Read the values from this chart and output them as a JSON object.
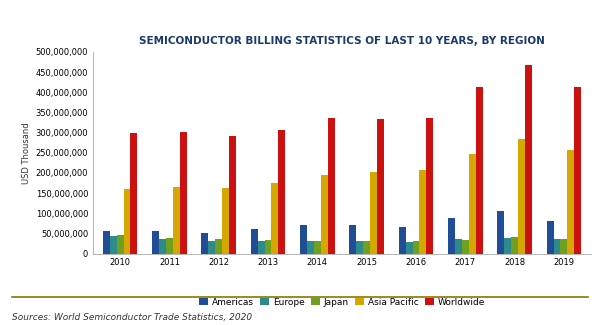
{
  "title": "SEMICONDUCTOR BILLING STATISTICS OF LAST 10 YEARS, BY REGION",
  "ylabel": "USD Thousand",
  "source": "Sources: World Semiconductor Trade Statistics, 2020",
  "years": [
    2010,
    2011,
    2012,
    2013,
    2014,
    2015,
    2016,
    2017,
    2018,
    2019
  ],
  "series": {
    "Americas": [
      55000000,
      55000000,
      52000000,
      62000000,
      70000000,
      70000000,
      65000000,
      88000000,
      105000000,
      80000000
    ],
    "Europe": [
      43000000,
      37000000,
      30000000,
      32000000,
      32000000,
      30000000,
      28000000,
      35000000,
      38000000,
      35000000
    ],
    "Japan": [
      45000000,
      38000000,
      35000000,
      33000000,
      32000000,
      30000000,
      30000000,
      33000000,
      40000000,
      35000000
    ],
    "Asia Pacific": [
      160000000,
      165000000,
      163000000,
      175000000,
      194000000,
      203000000,
      208000000,
      248000000,
      283000000,
      258000000
    ],
    "Worldwide": [
      298000000,
      301000000,
      291000000,
      306000000,
      335000000,
      333000000,
      337000000,
      412000000,
      468000000,
      412000000
    ]
  },
  "colors": {
    "Americas": "#1f4e97",
    "Europe": "#2e8b8b",
    "Japan": "#70a020",
    "Asia Pacific": "#d4a800",
    "Worldwide": "#cc1111"
  },
  "ylim": [
    0,
    500000000
  ],
  "yticks": [
    0,
    50000000,
    100000000,
    150000000,
    200000000,
    250000000,
    300000000,
    350000000,
    400000000,
    450000000,
    500000000
  ],
  "background_color": "#ffffff",
  "title_fontsize": 7.5,
  "axis_fontsize": 6,
  "legend_fontsize": 6.5,
  "source_fontsize": 6.5,
  "title_color": "#1a3a6e"
}
